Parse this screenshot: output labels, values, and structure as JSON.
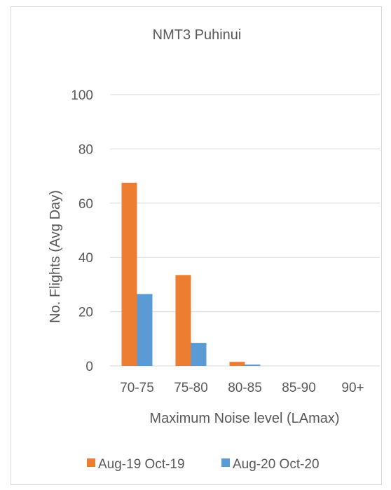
{
  "chart_data": {
    "type": "bar",
    "title": "NMT3 Puhinui",
    "xlabel": "Maximum Noise level (LAmax)",
    "ylabel": "No. Flights (Avg Day)",
    "categories": [
      "70-75",
      "75-80",
      "80-85",
      "85-90",
      "90+"
    ],
    "series": [
      {
        "name": "Aug-19 Oct-19",
        "color": "#ED7D31",
        "values": [
          67.5,
          33.5,
          1.5,
          0,
          0
        ]
      },
      {
        "name": "Aug-20 Oct-20",
        "color": "#5B9BD5",
        "values": [
          26.5,
          8.5,
          0.5,
          0,
          0
        ]
      }
    ],
    "ylim": [
      0,
      100
    ],
    "yticks": [
      0,
      20,
      40,
      60,
      80,
      100
    ],
    "grid": true,
    "legend_position": "bottom"
  }
}
